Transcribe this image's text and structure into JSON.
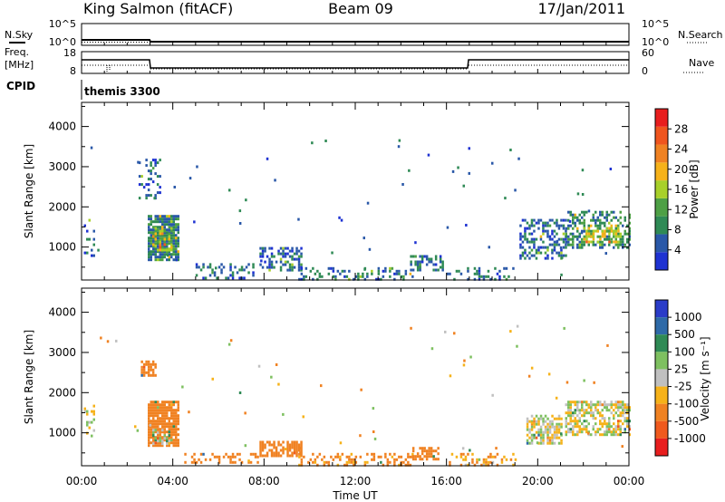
{
  "header": {
    "station": "King Salmon (fitACF)",
    "beam": "Beam 09",
    "date": "17/Jan/2011"
  },
  "status_panels": {
    "nsky_label": "N.Sky",
    "nsearch_label": "N.Search",
    "noise_ticks": [
      "10^5",
      "10^0"
    ],
    "freq_label_1": "Freq.",
    "freq_label_2": "[MHz]",
    "freq_ticks": [
      "18",
      "8"
    ],
    "nave_label": "Nave",
    "nave_ticks": [
      "60",
      "0"
    ],
    "cpid_label": "CPID",
    "cpid_value": "themis 3300"
  },
  "x_axis": {
    "label": "Time UT",
    "ticks": [
      "00:00",
      "04:00",
      "08:00",
      "12:00",
      "16:00",
      "20:00",
      "00:00"
    ]
  },
  "colors": {
    "power_scale": [
      "#1e32d2",
      "#2a58a8",
      "#2f8a55",
      "#4ea045",
      "#a8d02a",
      "#f6b21a",
      "#f08222",
      "#f0551e",
      "#e81e1e"
    ],
    "velocity_scale": [
      "#2a3cc8",
      "#2e6aa8",
      "#2f8a55",
      "#7ec060",
      "#c0c0c0",
      "#f6b21a",
      "#f08222",
      "#f05a1e",
      "#e81e1e"
    ]
  },
  "chart_data": [
    {
      "type": "heatmap",
      "name": "Power",
      "ylabel": "Slant Range [km]",
      "xlabel": "",
      "xlim": [
        0,
        24
      ],
      "ylim": [
        180,
        4600
      ],
      "yticks": [
        "1000",
        "2000",
        "3000",
        "4000"
      ],
      "colorbar": {
        "label": "Power [dB]",
        "range": [
          0,
          32
        ],
        "ticks": [
          "4",
          "8",
          "12",
          "16",
          "20",
          "24",
          "28"
        ]
      },
      "regions": [
        {
          "t0": 0.1,
          "t1": 0.5,
          "r0": 800,
          "r1": 1700,
          "value": 6,
          "density": 0.3
        },
        {
          "t0": 2.5,
          "t1": 3.4,
          "r0": 2200,
          "r1": 3200,
          "value": 5,
          "density": 0.25
        },
        {
          "t0": 2.9,
          "t1": 4.2,
          "r0": 700,
          "r1": 1800,
          "value": 8,
          "density": 0.85
        },
        {
          "t0": 3.1,
          "t1": 3.9,
          "r0": 900,
          "r1": 1500,
          "value": 15,
          "density": 0.5
        },
        {
          "t0": 5.0,
          "t1": 7.5,
          "r0": 200,
          "r1": 600,
          "value": 6,
          "density": 0.3
        },
        {
          "t0": 7.8,
          "t1": 9.6,
          "r0": 400,
          "r1": 1000,
          "value": 6,
          "density": 0.55
        },
        {
          "t0": 9.5,
          "t1": 14.5,
          "r0": 200,
          "r1": 500,
          "value": 6,
          "density": 0.3
        },
        {
          "t0": 14.4,
          "t1": 15.8,
          "r0": 400,
          "r1": 800,
          "value": 7,
          "density": 0.6
        },
        {
          "t0": 16.0,
          "t1": 19.0,
          "r0": 200,
          "r1": 500,
          "value": 6,
          "density": 0.3
        },
        {
          "t0": 19.2,
          "t1": 21.2,
          "r0": 700,
          "r1": 1700,
          "value": 6,
          "density": 0.4
        },
        {
          "t0": 21.2,
          "t1": 24.0,
          "r0": 1000,
          "r1": 1900,
          "value": 9,
          "density": 0.5
        },
        {
          "t0": 22.0,
          "t1": 23.5,
          "r0": 1100,
          "r1": 1500,
          "value": 17,
          "density": 0.4
        }
      ]
    },
    {
      "type": "heatmap",
      "name": "Velocity",
      "ylabel": "Slant Range [km]",
      "xlabel": "Time UT",
      "xlim": [
        0,
        24
      ],
      "ylim": [
        180,
        4600
      ],
      "yticks": [
        "1000",
        "2000",
        "3000",
        "4000"
      ],
      "colorbar": {
        "label": "Velocity [m s⁻¹]",
        "ticks": [
          "1000",
          "500",
          "100",
          "25",
          "-25",
          "-100",
          "-500",
          "-1000"
        ]
      },
      "regions": [
        {
          "t0": 0.1,
          "t1": 0.5,
          "r0": 900,
          "r1": 1700,
          "value": 0,
          "density": 0.3
        },
        {
          "t0": 2.6,
          "t1": 3.2,
          "r0": 2400,
          "r1": 2800,
          "value": -300,
          "density": 0.7
        },
        {
          "t0": 2.9,
          "t1": 4.2,
          "r0": 700,
          "r1": 1800,
          "value": -200,
          "density": 0.85
        },
        {
          "t0": 3.0,
          "t1": 3.8,
          "r0": 700,
          "r1": 1100,
          "value": 50,
          "density": 0.4
        },
        {
          "t0": 4.5,
          "t1": 7.8,
          "r0": 250,
          "r1": 500,
          "value": -200,
          "density": 0.35
        },
        {
          "t0": 7.8,
          "t1": 9.6,
          "r0": 450,
          "r1": 800,
          "value": -200,
          "density": 0.7
        },
        {
          "t0": 9.5,
          "t1": 14.5,
          "r0": 200,
          "r1": 500,
          "value": -150,
          "density": 0.3
        },
        {
          "t0": 14.5,
          "t1": 15.6,
          "r0": 350,
          "r1": 650,
          "value": -200,
          "density": 0.7
        },
        {
          "t0": 16.0,
          "t1": 19.0,
          "r0": 200,
          "r1": 500,
          "value": -100,
          "density": 0.3
        },
        {
          "t0": 19.5,
          "t1": 21.0,
          "r0": 750,
          "r1": 1450,
          "value": 0,
          "density": 0.6
        },
        {
          "t0": 21.2,
          "t1": 24.0,
          "r0": 950,
          "r1": 1800,
          "value": 0,
          "density": 0.6
        }
      ]
    }
  ]
}
